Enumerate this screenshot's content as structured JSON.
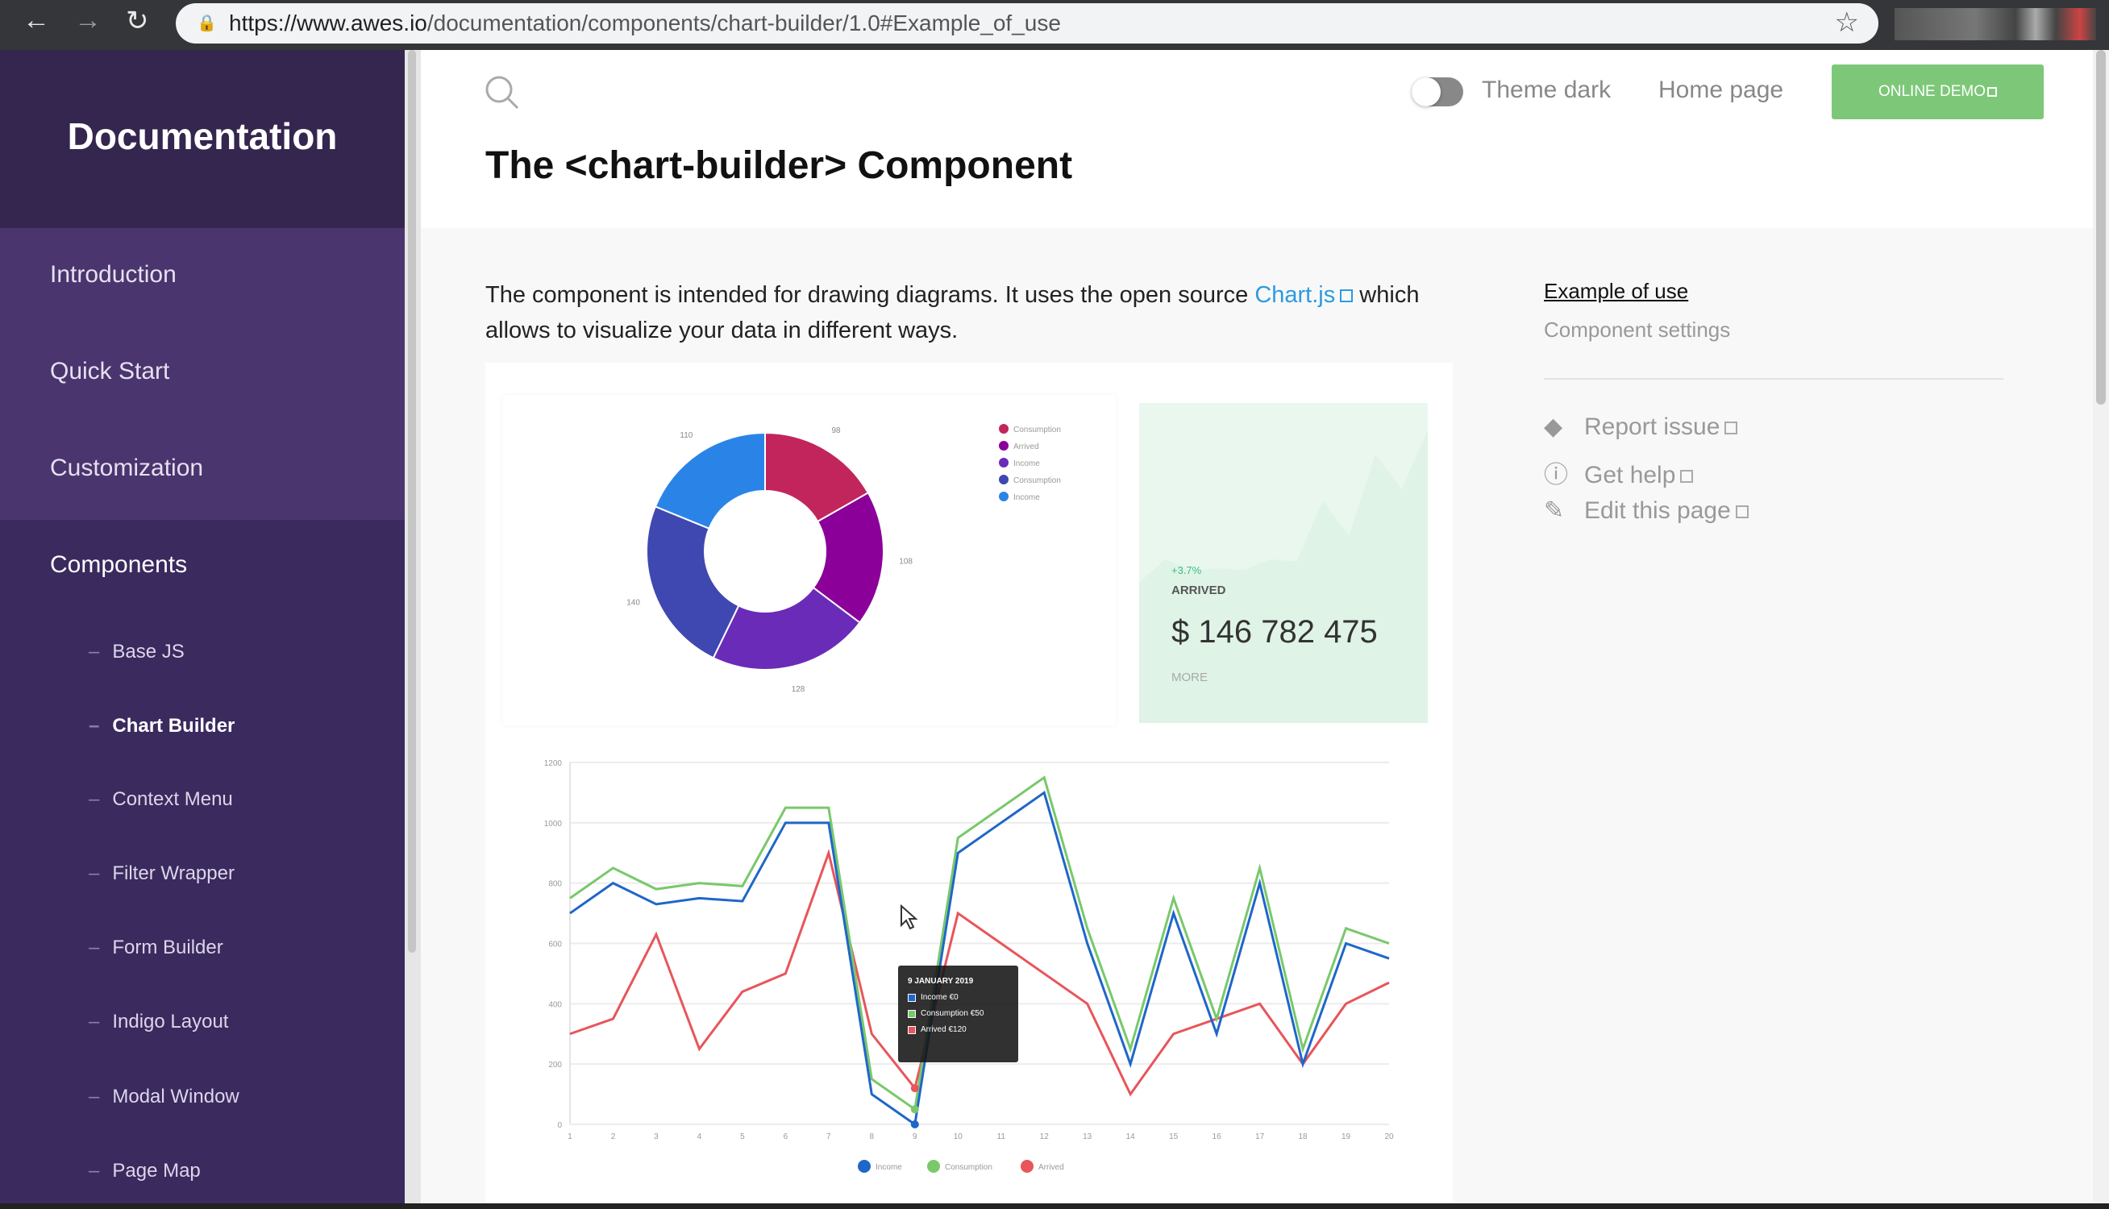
{
  "browser": {
    "url_host": "https://www.awes.io",
    "url_path": "/documentation/components/chart-builder/1.0#Example_of_use",
    "back": "←",
    "forward": "→",
    "reload": "↻",
    "star": "☆",
    "lock": "🔒"
  },
  "sidebar": {
    "title": "Documentation",
    "items": [
      {
        "label": "Introduction"
      },
      {
        "label": "Quick Start"
      },
      {
        "label": "Customization"
      },
      {
        "label": "Components"
      }
    ],
    "subitems": [
      {
        "label": "Base JS"
      },
      {
        "label": "Chart Builder",
        "active": true
      },
      {
        "label": "Context Menu"
      },
      {
        "label": "Filter Wrapper"
      },
      {
        "label": "Form Builder"
      },
      {
        "label": "Indigo Layout"
      },
      {
        "label": "Modal Window"
      },
      {
        "label": "Page Map"
      }
    ]
  },
  "header": {
    "theme_label": "Theme dark",
    "theme_dark": false,
    "home_label": "Home page",
    "demo_label": "ONLINE DEMO",
    "title": "The <chart-builder> Component"
  },
  "intro": {
    "before": "The component is intended for drawing diagrams. It uses the open source ",
    "link": "Chart.js",
    "after": " which allows to visualize your data in different ways."
  },
  "toc": {
    "items": [
      "Example of use",
      "Component settings"
    ],
    "links": [
      {
        "label": "Report issue",
        "icon": "git-icon"
      },
      {
        "label": "Get help",
        "icon": "help-circle-icon"
      },
      {
        "label": "Edit this page",
        "icon": "pencil-icon"
      }
    ]
  },
  "stat": {
    "change": "+3.7%",
    "label": "ARRIVED",
    "value": "$ 146 782 475",
    "more": "MORE"
  },
  "chart_data": [
    {
      "type": "pie",
      "variant": "donut",
      "labels": [
        "Consumption",
        "Arrived",
        "Income",
        "Consumption",
        "Income"
      ],
      "values": [
        98,
        108,
        128,
        140,
        110
      ],
      "colors": [
        "#c2255c",
        "#8b0099",
        "#6a2bb8",
        "#3f48b0",
        "#2a84e8"
      ],
      "legend": "top-right"
    },
    {
      "type": "area",
      "series": [
        {
          "values": [
            600,
            700,
            650,
            660,
            655,
            700,
            690,
            950,
            800,
            1150,
            1000,
            1250
          ]
        }
      ],
      "color": "#e9f7ef"
    },
    {
      "type": "line",
      "x": [
        1,
        2,
        3,
        4,
        5,
        6,
        7,
        8,
        9,
        10,
        11,
        12,
        13,
        14,
        15,
        16,
        17,
        18,
        19,
        20
      ],
      "ylim": [
        0,
        1200
      ],
      "yticks": [
        0,
        200,
        400,
        600,
        800,
        1000,
        1200
      ],
      "grid": true,
      "legend": "bottom",
      "series": [
        {
          "name": "Income",
          "color": "#1f66c9",
          "values": [
            700,
            800,
            730,
            750,
            740,
            1000,
            1000,
            100,
            0,
            900,
            1000,
            1100,
            600,
            200,
            700,
            300,
            800,
            200,
            600,
            550
          ]
        },
        {
          "name": "Consumption",
          "color": "#79c86b",
          "values": [
            750,
            850,
            780,
            800,
            790,
            1050,
            1050,
            150,
            50,
            950,
            1050,
            1150,
            650,
            250,
            750,
            350,
            850,
            250,
            650,
            600
          ]
        },
        {
          "name": "Arrived",
          "color": "#e8555a",
          "values": [
            300,
            350,
            630,
            250,
            440,
            500,
            900,
            300,
            120,
            700,
            600,
            500,
            400,
            100,
            300,
            350,
            400,
            200,
            400,
            470
          ]
        }
      ],
      "tooltip": {
        "title": "9 JANUARY 2019",
        "rows": [
          "Income €0",
          "Consumption €50",
          "Arrived €120"
        ]
      }
    }
  ]
}
